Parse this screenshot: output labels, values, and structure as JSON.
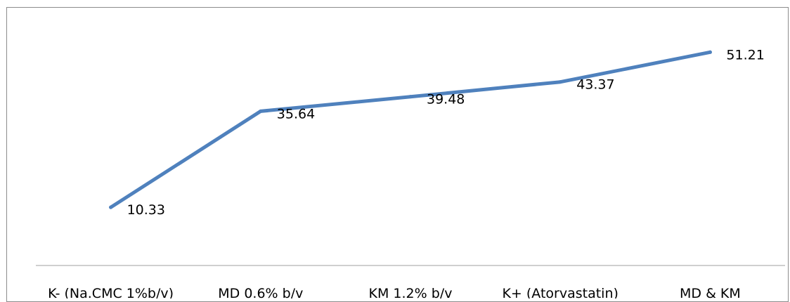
{
  "chart_data": {
    "type": "line",
    "title": "",
    "xlabel": "",
    "ylabel": "",
    "categories": [
      "K- (Na.CMC 1%b/v)",
      "MD 0.6% b/v",
      "KM 1.2% b/v",
      "K+ (Atorvastatin)",
      "MD & KM"
    ],
    "series": [
      {
        "values": [
          10.33,
          35.64,
          39.48,
          43.37,
          51.21
        ],
        "color": "#4f81bd"
      }
    ],
    "data_labels": [
      "10.33",
      "35.64",
      "39.48",
      "43.37",
      "51.21"
    ],
    "ylim": [
      -5,
      62
    ],
    "grid": false,
    "legend": "none",
    "axis_color": "#bfbfbf",
    "frame_color": "#8c8c8c"
  }
}
